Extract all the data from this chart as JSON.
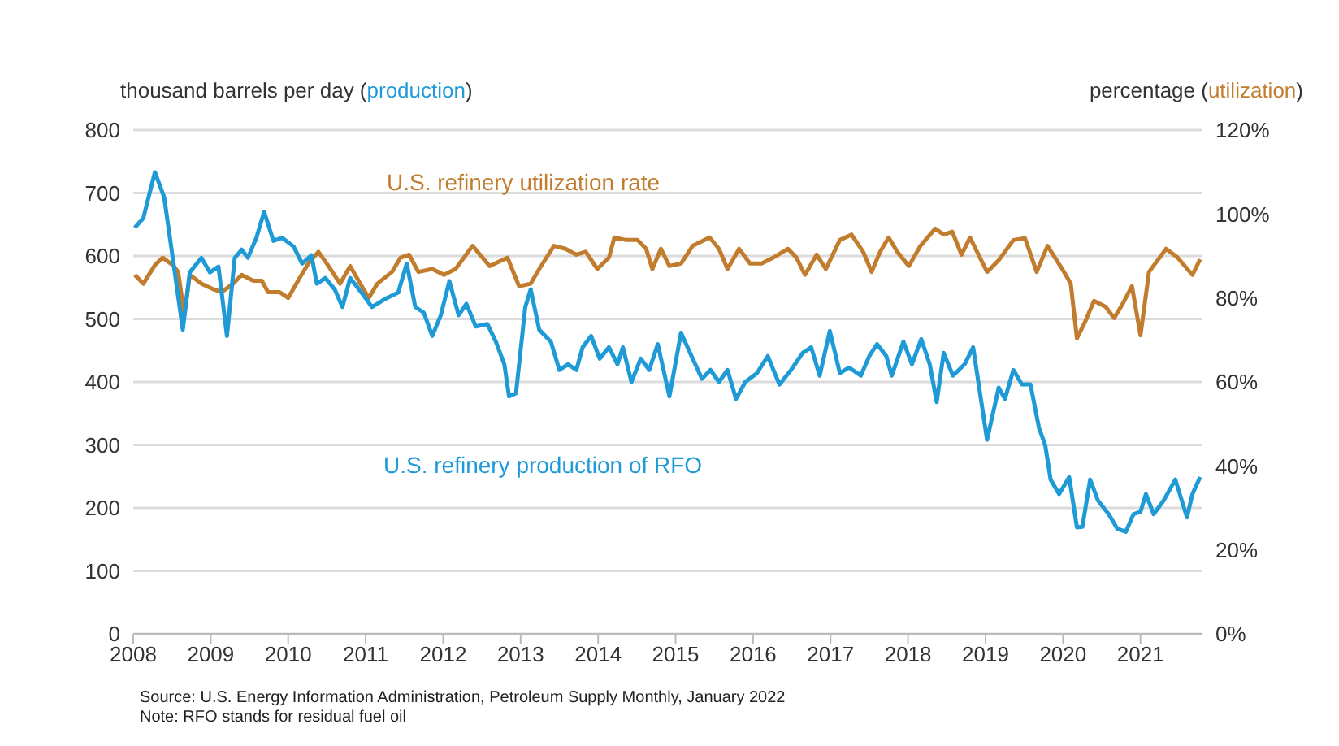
{
  "chart_data": {
    "type": "line",
    "ylabel": "thousand barrels per day (production)",
    "y2label": "percentage (utilization)",
    "annotations": [
      "Source: U.S. Energy Information Administration, Petroleum Supply Monthly, January 2022",
      "Note: RFO stands for residual fuel oil"
    ],
    "xlim": [
      2008,
      2021.8
    ],
    "xticks": [
      2008,
      2009,
      2010,
      2011,
      2012,
      2013,
      2014,
      2015,
      2016,
      2017,
      2018,
      2019,
      2020,
      2021
    ],
    "ylim": [
      0,
      800
    ],
    "yticks": [
      0,
      100,
      200,
      300,
      400,
      500,
      600,
      700,
      800
    ],
    "y2lim": [
      0,
      120
    ],
    "y2ticks": [
      {
        "value": 0,
        "label": "0%"
      },
      {
        "value": 20,
        "label": "20%"
      },
      {
        "value": 40,
        "label": "40%"
      },
      {
        "value": 60,
        "label": "60%"
      },
      {
        "value": 80,
        "label": "80%"
      },
      {
        "value": 100,
        "label": "100%"
      },
      {
        "value": 120,
        "label": "120%"
      }
    ],
    "grid": "y",
    "legend": false,
    "marker": "none",
    "line_style": "solid",
    "series": [
      {
        "name": "U.S. refinery utilization rate",
        "color": "#c27c2e",
        "axis": "y2",
        "x": [
          2008.02,
          2008.13,
          2008.28,
          2008.38,
          2008.51,
          2008.58,
          2008.66,
          2008.73,
          2008.88,
          2009.03,
          2009.14,
          2009.29,
          2009.4,
          2009.55,
          2009.66,
          2009.74,
          2009.89,
          2010.0,
          2010.15,
          2010.26,
          2010.39,
          2010.52,
          2010.67,
          2010.8,
          2010.93,
          2011.04,
          2011.15,
          2011.34,
          2011.45,
          2011.56,
          2011.68,
          2011.86,
          2012.01,
          2012.16,
          2012.38,
          2012.6,
          2012.83,
          2012.98,
          2013.13,
          2013.24,
          2013.43,
          2013.58,
          2013.72,
          2013.84,
          2013.99,
          2014.14,
          2014.21,
          2014.36,
          2014.51,
          2014.62,
          2014.7,
          2014.81,
          2014.92,
          2015.07,
          2015.22,
          2015.44,
          2015.56,
          2015.67,
          2015.82,
          2015.96,
          2016.11,
          2016.26,
          2016.45,
          2016.56,
          2016.67,
          2016.82,
          2016.94,
          2017.12,
          2017.27,
          2017.42,
          2017.53,
          2017.64,
          2017.75,
          2017.86,
          2018.01,
          2018.16,
          2018.35,
          2018.46,
          2018.57,
          2018.69,
          2018.8,
          2019.02,
          2019.17,
          2019.36,
          2019.51,
          2019.66,
          2019.8,
          2019.99,
          2020.1,
          2020.18,
          2020.29,
          2020.4,
          2020.55,
          2020.66,
          2020.77,
          2020.89,
          2021.0,
          2021.11,
          2021.33,
          2021.48,
          2021.67,
          2021.77
        ],
        "values": [
          85.5,
          83.4,
          87.8,
          89.6,
          87.8,
          86.2,
          75.9,
          85.5,
          83.4,
          82.1,
          81.4,
          83.4,
          85.5,
          84.1,
          84.1,
          81.4,
          81.4,
          80.0,
          84.8,
          88.2,
          91.0,
          87.6,
          83.4,
          87.6,
          83.4,
          80.0,
          83.4,
          86.2,
          89.6,
          90.3,
          86.2,
          86.9,
          85.5,
          86.9,
          92.4,
          87.6,
          89.6,
          82.8,
          83.4,
          86.9,
          92.4,
          91.7,
          90.3,
          91.0,
          86.9,
          89.6,
          94.4,
          93.8,
          93.8,
          91.7,
          86.9,
          91.7,
          87.6,
          88.2,
          92.4,
          94.4,
          91.7,
          86.9,
          91.7,
          88.2,
          88.2,
          89.6,
          91.7,
          89.6,
          85.5,
          90.3,
          86.9,
          93.8,
          95.1,
          91.0,
          86.2,
          91.0,
          94.4,
          91.0,
          87.6,
          92.4,
          96.5,
          95.1,
          95.8,
          90.3,
          94.4,
          86.2,
          89.0,
          93.8,
          94.2,
          86.2,
          92.4,
          86.9,
          83.4,
          70.4,
          74.5,
          79.3,
          77.9,
          75.2,
          78.6,
          82.8,
          71.1,
          86.2,
          91.7,
          89.6,
          85.5,
          89.2
        ]
      },
      {
        "name": "U.S. refinery production of RFO",
        "color": "#1e9ad6",
        "axis": "y",
        "x": [
          2008.02,
          2008.13,
          2008.28,
          2008.4,
          2008.51,
          2008.64,
          2008.73,
          2008.88,
          2008.99,
          2009.1,
          2009.21,
          2009.31,
          2009.4,
          2009.48,
          2009.59,
          2009.69,
          2009.81,
          2009.92,
          2010.07,
          2010.18,
          2010.3,
          2010.37,
          2010.48,
          2010.6,
          2010.7,
          2010.8,
          2010.97,
          2011.08,
          2011.27,
          2011.42,
          2011.53,
          2011.64,
          2011.75,
          2011.86,
          2011.97,
          2012.08,
          2012.2,
          2012.3,
          2012.42,
          2012.57,
          2012.68,
          2012.79,
          2012.85,
          2012.94,
          2013.06,
          2013.13,
          2013.24,
          2013.39,
          2013.5,
          2013.61,
          2013.72,
          2013.8,
          2013.91,
          2014.02,
          2014.14,
          2014.25,
          2014.32,
          2014.43,
          2014.55,
          2014.66,
          2014.77,
          2014.92,
          2015.07,
          2015.22,
          2015.34,
          2015.45,
          2015.56,
          2015.67,
          2015.78,
          2015.9,
          2016.05,
          2016.19,
          2016.34,
          2016.49,
          2016.64,
          2016.75,
          2016.86,
          2016.99,
          2017.12,
          2017.24,
          2017.39,
          2017.5,
          2017.6,
          2017.72,
          2017.79,
          2017.94,
          2018.05,
          2018.17,
          2018.28,
          2018.37,
          2018.46,
          2018.58,
          2018.73,
          2018.84,
          2019.02,
          2019.17,
          2019.25,
          2019.36,
          2019.47,
          2019.58,
          2019.69,
          2019.77,
          2019.84,
          2019.95,
          2020.08,
          2020.18,
          2020.25,
          2020.35,
          2020.45,
          2020.59,
          2020.7,
          2020.81,
          2020.91,
          2021.0,
          2021.07,
          2021.17,
          2021.3,
          2021.45,
          2021.6,
          2021.67,
          2021.77
        ],
        "values": [
          645,
          660,
          733,
          693,
          597,
          483,
          574,
          597,
          574,
          583,
          473,
          597,
          610,
          597,
          629,
          670,
          624,
          629,
          615,
          588,
          601,
          556,
          565,
          547,
          519,
          565,
          538,
          519,
          533,
          542,
          588,
          519,
          510,
          473,
          506,
          560,
          506,
          524,
          488,
          492,
          464,
          428,
          377,
          382,
          519,
          547,
          483,
          464,
          419,
          428,
          419,
          455,
          473,
          437,
          455,
          428,
          455,
          400,
          437,
          419,
          460,
          377,
          478,
          437,
          405,
          419,
          400,
          419,
          373,
          400,
          414,
          441,
          396,
          419,
          446,
          455,
          410,
          481,
          414,
          423,
          410,
          441,
          460,
          441,
          410,
          464,
          428,
          468,
          428,
          368,
          446,
          410,
          428,
          455,
          308,
          391,
          373,
          419,
          396,
          396,
          327,
          300,
          245,
          222,
          249,
          169,
          170,
          245,
          212,
          190,
          167,
          162,
          190,
          194,
          222,
          190,
          212,
          245,
          185,
          222,
          249
        ]
      }
    ]
  }
}
